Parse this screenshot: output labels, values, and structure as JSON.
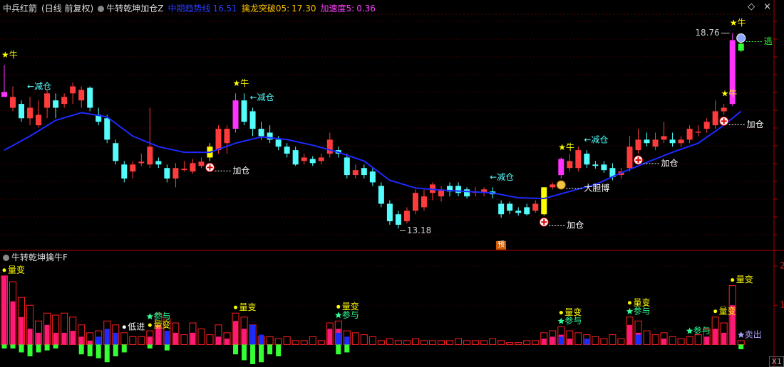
{
  "header": {
    "stock": "中兵红箭",
    "mode": "(日线 前复权)",
    "indicator": "牛转乾坤加仓Z",
    "readouts": [
      {
        "name": "中期趋势线",
        "value": "16.51",
        "color": "#2b3bff"
      },
      {
        "name": "擒龙突破05:",
        "value": "17.30",
        "color": "#ffc000"
      },
      {
        "name": "加速度5:",
        "value": "0.36",
        "color": "#ff40ff"
      }
    ],
    "controls": [
      "◇",
      "×"
    ]
  },
  "chart_data": [
    {
      "type": "candlestick",
      "ylim": [
        12.6,
        19.3
      ],
      "up_color": "#ff3c3c",
      "down_color": "#54fcfc",
      "grid": true,
      "open": [
        16.94,
        16.63,
        16.74,
        16.33,
        16.13,
        16.63,
        16.84,
        16.74,
        17.04,
        16.84,
        17.2,
        16.43,
        16.33,
        15.62,
        15.01,
        14.81,
        15.05,
        15.01,
        15.11,
        14.91,
        14.61,
        14.85,
        14.81,
        14.97,
        15.21,
        15.42,
        15.62,
        16.03,
        16.84,
        16.53,
        16.03,
        15.92,
        15.72,
        15.52,
        15.42,
        15.11,
        15.17,
        15.11,
        15.32,
        15.42,
        15.21,
        14.71,
        14.91,
        14.81,
        14.4,
        13.89,
        13.59,
        13.39,
        13.69,
        13.79,
        14.2,
        14.1,
        14.4,
        14.4,
        14.3,
        14.2,
        14.2,
        14.24,
        13.89,
        13.89,
        13.69,
        13.79,
        13.69,
        13.59,
        14.36,
        14.71,
        14.91,
        14.91,
        15.32,
        15.01,
        15.01,
        14.91,
        14.71,
        14.91,
        15.42,
        15.72,
        15.52,
        15.72,
        15.72,
        15.62,
        15.72,
        15.92,
        16.03,
        16.13,
        16.53,
        16.74,
        18.46
      ],
      "high": [
        17.85,
        17.24,
        16.84,
        16.94,
        16.84,
        17.14,
        17.04,
        17.04,
        17.35,
        17.24,
        17.24,
        16.63,
        16.43,
        15.72,
        15.11,
        15.11,
        15.32,
        16.63,
        15.21,
        15.01,
        15.05,
        15.11,
        15.17,
        15.21,
        15.62,
        16.13,
        16.13,
        17.04,
        17.04,
        16.63,
        16.23,
        16.13,
        15.82,
        15.62,
        15.52,
        15.32,
        15.25,
        15.32,
        15.92,
        15.52,
        15.32,
        15.01,
        15.01,
        14.91,
        14.5,
        13.99,
        13.69,
        13.79,
        14.3,
        14.3,
        14.5,
        14.4,
        14.5,
        14.5,
        14.36,
        14.36,
        14.36,
        14.36,
        13.99,
        13.95,
        13.79,
        13.89,
        13.99,
        14.36,
        14.5,
        15.21,
        15.32,
        15.52,
        15.42,
        15.11,
        15.11,
        15.05,
        14.91,
        15.82,
        16.03,
        15.92,
        15.92,
        16.23,
        15.92,
        15.82,
        16.13,
        16.13,
        16.33,
        16.84,
        16.74,
        18.76,
        18.7
      ],
      "low": [
        16.94,
        16.53,
        16.23,
        16.13,
        16.07,
        16.33,
        16.33,
        16.63,
        16.74,
        16.63,
        16.53,
        16.13,
        15.62,
        15.01,
        14.5,
        14.61,
        14.97,
        14.91,
        14.91,
        14.5,
        14.36,
        14.81,
        14.75,
        14.91,
        15.11,
        15.32,
        15.32,
        15.92,
        16.13,
        15.82,
        15.72,
        15.62,
        15.42,
        15.21,
        14.97,
        15.01,
        14.97,
        15.01,
        15.21,
        15.21,
        14.61,
        14.61,
        14.61,
        14.4,
        13.79,
        13.29,
        13.18,
        13.33,
        13.59,
        13.69,
        13.99,
        13.95,
        14.1,
        14.1,
        14.04,
        14.1,
        14.1,
        14.04,
        13.49,
        13.59,
        13.55,
        13.55,
        13.63,
        13.55,
        14.3,
        14.61,
        14.81,
        14.81,
        14.91,
        14.89,
        14.77,
        14.56,
        14.61,
        14.81,
        15.32,
        15.52,
        15.42,
        15.62,
        15.52,
        15.52,
        15.62,
        15.82,
        15.92,
        16.03,
        16.43,
        16.68,
        18.22
      ],
      "close": [
        17.08,
        16.94,
        16.33,
        16.63,
        16.43,
        17.04,
        16.63,
        16.94,
        17.24,
        17.14,
        16.63,
        16.23,
        15.72,
        15.11,
        14.61,
        15.01,
        15.09,
        15.52,
        15.01,
        14.61,
        14.91,
        14.89,
        15.05,
        15.09,
        15.52,
        16.03,
        16.03,
        16.84,
        16.23,
        16.03,
        15.82,
        15.72,
        15.52,
        15.32,
        15.01,
        15.21,
        15.05,
        15.21,
        15.72,
        15.32,
        14.71,
        14.85,
        14.71,
        14.5,
        13.89,
        13.39,
        13.29,
        13.69,
        14.2,
        14.1,
        14.44,
        14.3,
        14.24,
        14.2,
        14.1,
        14.24,
        14.3,
        14.16,
        13.59,
        13.69,
        13.63,
        13.59,
        13.89,
        14.36,
        14.44,
        15.17,
        15.11,
        15.42,
        15.01,
        14.97,
        14.85,
        14.65,
        14.81,
        15.52,
        15.72,
        15.62,
        15.72,
        15.82,
        15.62,
        15.72,
        16.03,
        15.95,
        16.23,
        16.53,
        16.63,
        18.56,
        18.26
      ],
      "special_colors": [
        {
          "index": 0,
          "color": "#ff33ff"
        },
        {
          "index": 24,
          "color": "#ffff00"
        },
        {
          "index": 27,
          "color": "#ff33ff"
        },
        {
          "index": 63,
          "color": "#ffff00"
        },
        {
          "index": 65,
          "color": "#ff33ff"
        },
        {
          "index": 85,
          "color": "#ff33ff"
        },
        {
          "index": 86,
          "color": "#33ff33"
        }
      ],
      "ma": {
        "color": "#1e2aff",
        "x": [
          0,
          3,
          6,
          9,
          12,
          15,
          18,
          21,
          24,
          27,
          30,
          33,
          36,
          39,
          42,
          45,
          48,
          51,
          54,
          57,
          60,
          63,
          66,
          69,
          72,
          75,
          78,
          81,
          84,
          86
        ],
        "values": [
          15.42,
          15.82,
          16.27,
          16.49,
          16.37,
          15.82,
          15.52,
          15.36,
          15.36,
          15.62,
          15.8,
          15.72,
          15.56,
          15.36,
          15.11,
          14.56,
          14.34,
          14.28,
          14.24,
          14.2,
          14.06,
          14.04,
          14.24,
          14.44,
          14.77,
          15.07,
          15.36,
          15.62,
          16.13,
          16.53
        ]
      },
      "low_label_index": 46,
      "high_label_index": 85,
      "forecast_marker": "预",
      "annotations": [
        {
          "index": 0,
          "text": "★牛",
          "at": "high",
          "color": "#ffff00"
        },
        {
          "index": 3,
          "text": "←减仓",
          "at": "high",
          "color": "#54fcfc"
        },
        {
          "index": 24,
          "text": "加仓",
          "at": "low",
          "icon": "plus",
          "color": "#ffffff"
        },
        {
          "index": 27,
          "text": "★牛",
          "at": "high",
          "color": "#ffff00"
        },
        {
          "index": 29,
          "text": "←减仓",
          "at": "high",
          "color": "#54fcfc"
        },
        {
          "index": 57,
          "text": "←减仓",
          "at": "high",
          "color": "#54fcfc"
        },
        {
          "index": 63,
          "text": "加仓",
          "at": "low",
          "icon": "plus",
          "color": "#ffffff"
        },
        {
          "index": 65,
          "text": "★牛",
          "at": "high",
          "color": "#ffff00"
        },
        {
          "index": 65,
          "text": "大胆博",
          "at": "low",
          "icon": "bag",
          "color": "#ffffff"
        },
        {
          "index": 68,
          "text": "←减仓",
          "at": "high",
          "color": "#54fcfc"
        },
        {
          "index": 74,
          "text": "加仓",
          "at": "low",
          "icon": "plus",
          "color": "#ffffff"
        },
        {
          "index": 84,
          "text": "★牛",
          "at": "high",
          "color": "#ffff00"
        },
        {
          "index": 84,
          "text": "加仓",
          "at": "low",
          "icon": "plus",
          "color": "#ffffff"
        },
        {
          "index": 85,
          "text": "★牛",
          "at": "high",
          "color": "#ffff00"
        },
        {
          "index": 86,
          "text": "逃",
          "at": "high",
          "icon": "face",
          "color": "#33ff33"
        }
      ]
    },
    {
      "type": "bar",
      "title": "牛转乾坤擒牛F",
      "corner_label": "X1",
      "ylim": [
        -0.5,
        2.2
      ],
      "yticks": [
        1,
        2
      ],
      "series": [
        {
          "style": "outline",
          "color": "#ff2020",
          "values": [
            1.75,
            1.6,
            1.2,
            1.0,
            0.6,
            0.8,
            0.75,
            0.8,
            0.7,
            0.5,
            0.3,
            0.35,
            0.6,
            0.5,
            0.3,
            0.2,
            0.2,
            0.35,
            0.8,
            0.65,
            0.55,
            0.25,
            0.55,
            0.4,
            0.25,
            0.5,
            0.3,
            0.8,
            0.7,
            0.5,
            0.2,
            0.2,
            0.15,
            0.2,
            0.1,
            0.1,
            0.2,
            0.1,
            0.55,
            0.6,
            0.35,
            0.3,
            0.25,
            0.2,
            0.1,
            0.15,
            0.1,
            0.1,
            0.15,
            0.1,
            0.1,
            0.1,
            0.1,
            0.15,
            0.1,
            0.1,
            0.1,
            0.15,
            0.1,
            0.05,
            0.05,
            0.1,
            0.1,
            0.3,
            0.35,
            0.45,
            0.35,
            0.3,
            0.25,
            0.2,
            0.15,
            0.25,
            0.15,
            0.7,
            0.6,
            0.35,
            0.25,
            0.3,
            0.2,
            0.15,
            0.2,
            0.25,
            0.4,
            0.7,
            0.55,
            1.5,
            0.1
          ]
        },
        {
          "style": "fill",
          "color": "#ff1a75",
          "values": [
            1.75,
            1.1,
            0.7,
            0.4,
            0.3,
            0.5,
            0.3,
            0.3,
            0.35,
            0.2,
            0.1,
            null,
            null,
            null,
            null,
            null,
            null,
            0.2,
            0.5,
            0.2,
            0.3,
            null,
            0.3,
            null,
            null,
            0.2,
            0.15,
            0.6,
            0.4,
            null,
            null,
            null,
            null,
            null,
            null,
            null,
            null,
            null,
            0.4,
            0.4,
            null,
            null,
            null,
            null,
            null,
            null,
            null,
            null,
            null,
            null,
            null,
            null,
            null,
            null,
            null,
            null,
            null,
            null,
            null,
            null,
            null,
            null,
            null,
            0.15,
            0.2,
            0.25,
            0.15,
            null,
            null,
            null,
            null,
            null,
            null,
            0.5,
            0.3,
            null,
            null,
            0.15,
            null,
            null,
            null,
            null,
            0.2,
            0.4,
            0.3,
            1.0,
            null
          ]
        },
        {
          "style": "fill",
          "color": "#1a2cff",
          "values": [
            null,
            null,
            null,
            null,
            null,
            null,
            null,
            null,
            null,
            null,
            null,
            0.2,
            0.4,
            0.3,
            null,
            null,
            null,
            null,
            null,
            0.35,
            null,
            null,
            null,
            null,
            null,
            null,
            null,
            null,
            null,
            0.5,
            0.25,
            null,
            null,
            null,
            null,
            null,
            null,
            null,
            null,
            0.3,
            0.2,
            null,
            null,
            null,
            null,
            null,
            null,
            null,
            null,
            null,
            null,
            null,
            null,
            null,
            null,
            null,
            null,
            null,
            null,
            null,
            null,
            null,
            null,
            null,
            null,
            0.2,
            null,
            null,
            0.15,
            null,
            null,
            null,
            null,
            null,
            0.25,
            null,
            null,
            null,
            null,
            null,
            null,
            null,
            null,
            null,
            null,
            null,
            null
          ]
        },
        {
          "style": "fill",
          "color": "#33ff33",
          "values": [
            -0.1,
            -0.1,
            -0.2,
            -0.3,
            -0.2,
            -0.15,
            -0.1,
            null,
            null,
            -0.25,
            -0.3,
            -0.35,
            -0.45,
            -0.3,
            -0.2,
            null,
            null,
            -0.1,
            null,
            -0.15,
            null,
            null,
            null,
            null,
            null,
            null,
            null,
            -0.25,
            -0.4,
            -0.5,
            -0.45,
            -0.25,
            -0.3,
            null,
            null,
            null,
            null,
            null,
            null,
            -0.25,
            -0.2,
            null,
            null,
            null,
            null,
            null,
            null,
            null,
            null,
            null,
            null,
            null,
            null,
            null,
            null,
            null,
            null,
            null,
            null,
            null,
            null,
            null,
            null,
            null,
            null,
            null,
            null,
            null,
            null,
            null,
            null,
            null,
            null,
            null,
            null,
            null,
            null,
            null,
            null,
            null,
            null,
            null,
            null,
            null,
            null,
            null,
            -0.12
          ]
        }
      ],
      "annotations": [
        {
          "index": 0,
          "text": "量变",
          "icon": "dot",
          "color": "#ffff00"
        },
        {
          "index": 14,
          "text": "低进",
          "icon": "dot",
          "color": "#ffffff"
        },
        {
          "index": 17,
          "text": "量变",
          "icon": "dot",
          "color": "#ffff00"
        },
        {
          "index": 17,
          "text": "参与",
          "icon": "star",
          "color": "#33ff99"
        },
        {
          "index": 27,
          "text": "量变",
          "icon": "dot",
          "color": "#ffff00"
        },
        {
          "index": 39,
          "text": "参与",
          "icon": "star",
          "color": "#33ff99"
        },
        {
          "index": 39,
          "text": "量变",
          "icon": "dot",
          "color": "#ffff00"
        },
        {
          "index": 65,
          "text": "参与",
          "icon": "star",
          "color": "#33ff99"
        },
        {
          "index": 65,
          "text": "量变",
          "icon": "dot",
          "color": "#ffff00"
        },
        {
          "index": 73,
          "text": "参与",
          "icon": "star",
          "color": "#33ff99"
        },
        {
          "index": 73,
          "text": "量变",
          "icon": "dot",
          "color": "#ffff00"
        },
        {
          "index": 80,
          "text": "参与",
          "icon": "star",
          "color": "#33ff99"
        },
        {
          "index": 83,
          "text": "量变",
          "icon": "dot",
          "color": "#ffff00"
        },
        {
          "index": 85,
          "text": "量变",
          "icon": "dot",
          "color": "#ffff00"
        },
        {
          "index": 86,
          "text": "卖出",
          "icon": "star",
          "color": "#b0a0ff"
        }
      ]
    }
  ]
}
